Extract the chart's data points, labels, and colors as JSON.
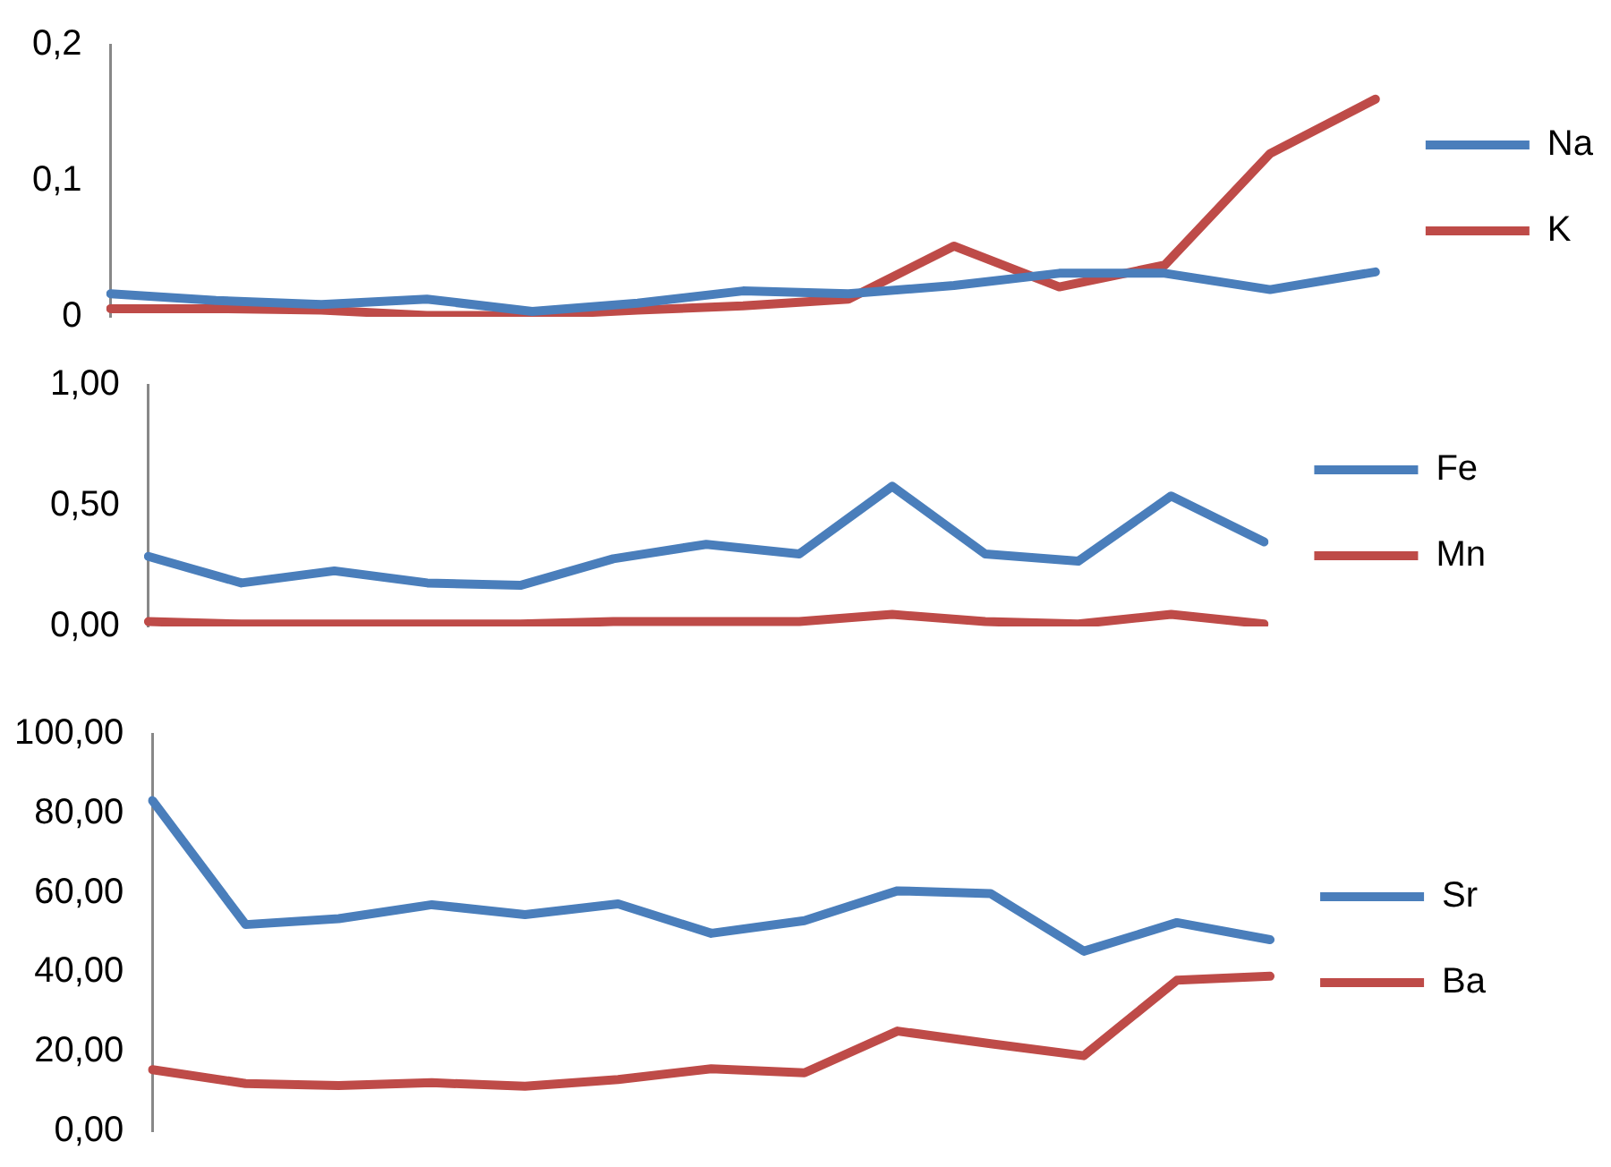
{
  "chart_data": [
    {
      "type": "line",
      "categories": [
        null,
        null,
        null,
        null,
        null,
        null,
        null,
        null,
        null,
        null,
        null,
        null,
        null
      ],
      "ylim": [
        0,
        0.2
      ],
      "yticks": [
        {
          "value": 0,
          "label": "0"
        },
        {
          "value": 0.1,
          "label": "0,1"
        },
        {
          "value": 0.2,
          "label": "0,2"
        }
      ],
      "grid": false,
      "legend": "right",
      "marker": "none",
      "line_style": "solid",
      "tick_labels": "y",
      "series": [
        {
          "name": "Na",
          "color": "#4a7ebb",
          "values": [
            0.017,
            0.012,
            0.009,
            0.013,
            0.004,
            0.01,
            0.019,
            0.017,
            0.023,
            0.032,
            0.032,
            0.02,
            0.033
          ]
        },
        {
          "name": "K",
          "color": "#be4b48",
          "values": [
            0.006,
            0.006,
            0.005,
            0.001,
            0.001,
            0.005,
            0.008,
            0.013,
            0.052,
            0.022,
            0.038,
            0.12,
            0.16
          ]
        }
      ]
    },
    {
      "type": "line",
      "categories": [
        null,
        null,
        null,
        null,
        null,
        null,
        null,
        null,
        null,
        null,
        null,
        null,
        null
      ],
      "ylim": [
        0,
        1
      ],
      "yticks": [
        {
          "value": 0,
          "label": "0,00"
        },
        {
          "value": 0.5,
          "label": "0,50"
        },
        {
          "value": 1,
          "label": "1,00"
        }
      ],
      "grid": false,
      "legend": "right",
      "marker": "none",
      "line_style": "solid",
      "tick_labels": "y",
      "series": [
        {
          "name": "Fe",
          "color": "#4a7ebb",
          "values": [
            0.29,
            0.18,
            0.23,
            0.18,
            0.17,
            0.28,
            0.34,
            0.3,
            0.58,
            0.3,
            0.27,
            0.54,
            0.35
          ]
        },
        {
          "name": "Mn",
          "color": "#be4b48",
          "values": [
            0.02,
            0.01,
            0.01,
            0.01,
            0.01,
            0.02,
            0.02,
            0.02,
            0.05,
            0.02,
            0.01,
            0.05,
            0.01
          ]
        }
      ]
    },
    {
      "type": "line",
      "categories": [
        null,
        null,
        null,
        null,
        null,
        null,
        null,
        null,
        null,
        null,
        null,
        null,
        null
      ],
      "ylim": [
        0,
        100
      ],
      "yticks": [
        {
          "value": 0,
          "label": "0,00"
        },
        {
          "value": 20,
          "label": "20,00"
        },
        {
          "value": 40,
          "label": "40,00"
        },
        {
          "value": 60,
          "label": "60,00"
        },
        {
          "value": 80,
          "label": "80,00"
        },
        {
          "value": 100,
          "label": "100,00"
        }
      ],
      "grid": false,
      "legend": "right",
      "marker": "none",
      "line_style": "solid",
      "tick_labels": "y",
      "series": [
        {
          "name": "Sr",
          "color": "#4a7ebb",
          "values": [
            83.2,
            52,
            53.5,
            57,
            54.5,
            57.2,
            49.8,
            53,
            60.5,
            59.8,
            45.3,
            52.5,
            48.2
          ]
        },
        {
          "name": "Ba",
          "color": "#be4b48",
          "values": [
            15.5,
            12,
            11.5,
            12.2,
            11.3,
            13,
            15.7,
            14.7,
            25.2,
            22,
            19,
            38,
            39
          ]
        }
      ]
    }
  ]
}
